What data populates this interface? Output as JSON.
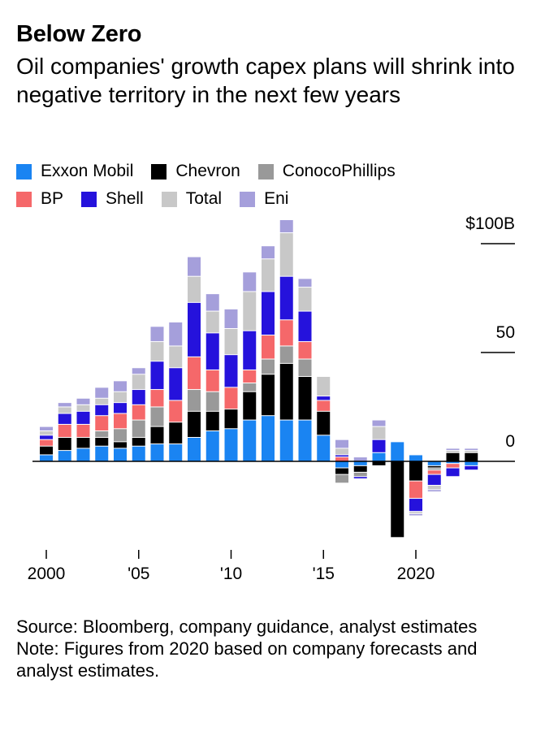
{
  "header": {
    "title": "Below Zero",
    "subtitle": "Oil companies' growth capex plans will shrink into negative territory in the next few years"
  },
  "legend": [
    {
      "name": "Exxon Mobil",
      "color": "#1a84f2"
    },
    {
      "name": "Chevron",
      "color": "#000000"
    },
    {
      "name": "ConocoPhillips",
      "color": "#999999"
    },
    {
      "name": "BP",
      "color": "#f5686a"
    },
    {
      "name": "Shell",
      "color": "#2512dc"
    },
    {
      "name": "Total",
      "color": "#c8c8c8"
    },
    {
      "name": "Eni",
      "color": "#a59fdb"
    }
  ],
  "footer": {
    "source": "Source: Bloomberg, company guidance, analyst estimates",
    "note": "Note: Figures from 2020 based on company forecasts and analyst estimates."
  },
  "chart_data": {
    "type": "bar",
    "stacked": true,
    "x": [
      2000,
      2001,
      2002,
      2003,
      2004,
      2005,
      2006,
      2007,
      2008,
      2009,
      2010,
      2011,
      2012,
      2013,
      2014,
      2015,
      2016,
      2017,
      2018,
      2019,
      2020,
      2021,
      2022,
      2023
    ],
    "x_tick_values": [
      2000,
      2005,
      2010,
      2015,
      2020
    ],
    "x_tick_labels": [
      "2000",
      "'05",
      "'10",
      "'15",
      "2020"
    ],
    "y_ticks": [
      {
        "value": 100,
        "label": "$100B"
      },
      {
        "value": 50,
        "label": "50"
      },
      {
        "value": 0,
        "label": "0"
      }
    ],
    "ylim": [
      -37,
      112
    ],
    "grid": false,
    "legend_position": "top",
    "series": [
      {
        "name": "Exxon Mobil",
        "color": "#1a84f2",
        "values": [
          3,
          5,
          6,
          7,
          6,
          7,
          8,
          8,
          11,
          14,
          15,
          19,
          21,
          19,
          19,
          12,
          -3,
          -2,
          4,
          9,
          3,
          -2,
          -1,
          -2
        ]
      },
      {
        "name": "Chevron",
        "color": "#000000",
        "values": [
          4,
          6,
          5,
          4,
          3,
          4,
          8,
          10,
          12,
          9,
          9,
          13,
          19,
          26,
          20,
          11,
          -3,
          -3,
          -2,
          -35,
          -9,
          -1,
          4,
          4
        ]
      },
      {
        "name": "ConocoPhillips",
        "color": "#999999",
        "values": [
          0,
          0,
          0,
          3,
          6,
          8,
          9,
          0,
          10,
          9,
          0,
          4,
          7,
          8,
          8,
          0,
          -4,
          -2,
          0,
          0,
          0,
          -1,
          0,
          0
        ]
      },
      {
        "name": "BP",
        "color": "#f5686a",
        "values": [
          3,
          6,
          6,
          7,
          7,
          7,
          8,
          10,
          15,
          10,
          10,
          6,
          11,
          12,
          8,
          5,
          2,
          0,
          0,
          0,
          -8,
          -2,
          -2,
          0
        ]
      },
      {
        "name": "Shell",
        "color": "#2512dc",
        "values": [
          2,
          5,
          6,
          5,
          5,
          7,
          13,
          15,
          25,
          17,
          15,
          18,
          20,
          20,
          14,
          2,
          1,
          -1,
          6,
          0,
          -6,
          -5,
          -4,
          -2
        ]
      },
      {
        "name": "Total",
        "color": "#c8c8c8",
        "values": [
          2,
          3,
          3,
          3,
          5,
          7,
          9,
          10,
          12,
          10,
          12,
          18,
          15,
          20,
          11,
          9,
          3,
          0,
          6,
          0,
          -1,
          -2,
          1,
          1
        ]
      },
      {
        "name": "Eni",
        "color": "#a59fdb",
        "values": [
          2,
          2,
          3,
          5,
          5,
          3,
          7,
          11,
          9,
          8,
          9,
          9,
          6,
          6,
          4,
          0,
          4,
          2,
          3,
          0,
          -1,
          -1,
          1,
          1
        ]
      }
    ]
  }
}
